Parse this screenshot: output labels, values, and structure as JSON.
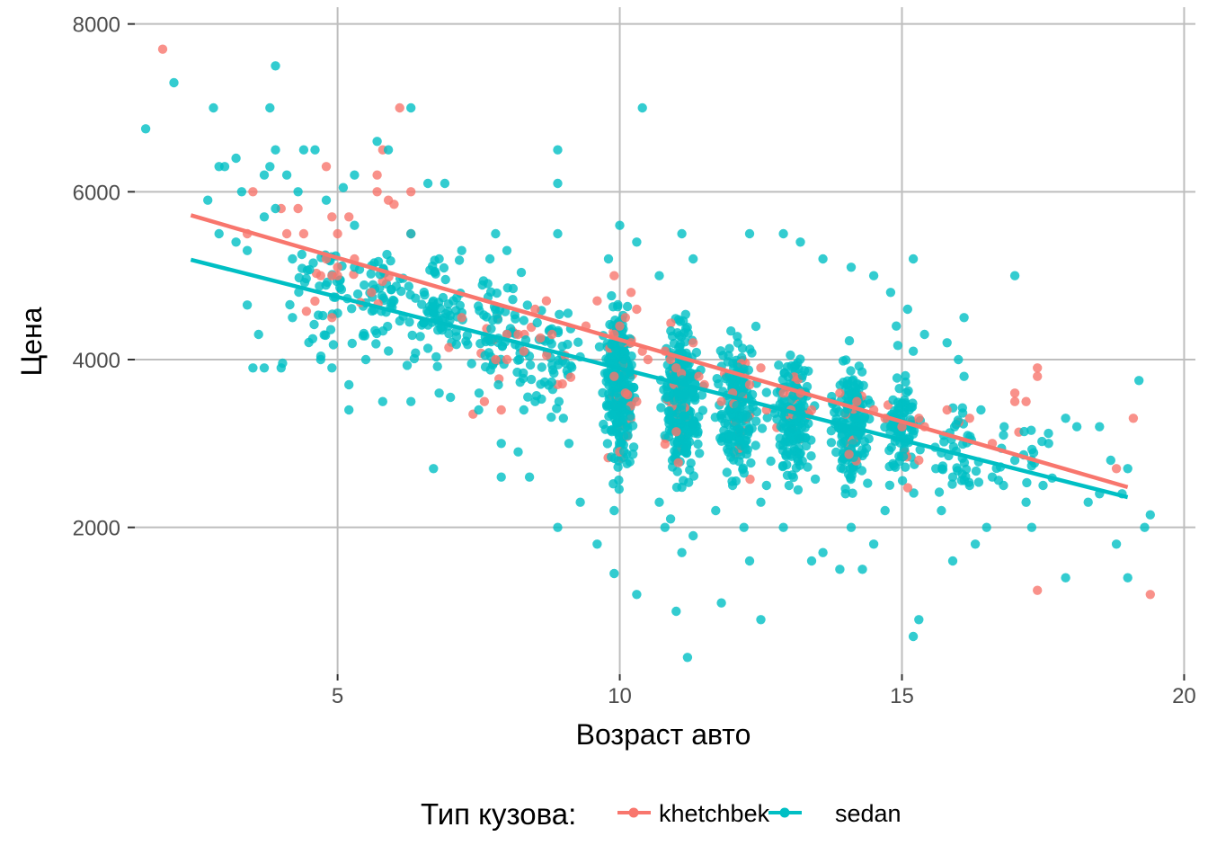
{
  "chart_data": {
    "type": "scatter",
    "xlabel": "Возраст авто",
    "ylabel": "Цена",
    "xlim": [
      1.2,
      20.2
    ],
    "ylim": [
      250,
      8200
    ],
    "x_ticks": [
      5,
      10,
      15,
      20
    ],
    "y_ticks": [
      2000,
      4000,
      6000,
      8000
    ],
    "grid": true,
    "legend": {
      "title": "Тип кузова:",
      "position": "bottom",
      "entries": [
        "khetchbek",
        "sedan"
      ]
    },
    "series": [
      {
        "name": "khetchbek",
        "color": "#F8766D",
        "trend": {
          "x": [
            2.4,
            19.0
          ],
          "y": [
            5720,
            2480
          ]
        },
        "points": [
          [
            1.9,
            7700
          ],
          [
            6.1,
            7000
          ],
          [
            5.8,
            6500
          ],
          [
            5.7,
            6200
          ],
          [
            5.9,
            5900
          ],
          [
            6.3,
            6000
          ],
          [
            4.8,
            6300
          ],
          [
            5.7,
            6000
          ],
          [
            6.0,
            5850
          ],
          [
            4.3,
            5800
          ],
          [
            4.0,
            5800
          ],
          [
            3.5,
            6000
          ],
          [
            5.2,
            5700
          ],
          [
            4.9,
            5700
          ],
          [
            6.3,
            5500
          ],
          [
            4.1,
            5500
          ],
          [
            4.4,
            5500
          ],
          [
            5.0,
            5500
          ],
          [
            3.4,
            5500
          ],
          [
            5.3,
            5200
          ],
          [
            4.8,
            5200
          ],
          [
            5.0,
            5100
          ],
          [
            4.9,
            5000
          ],
          [
            4.7,
            5000
          ],
          [
            5.0,
            5000
          ],
          [
            5.6,
            4800
          ],
          [
            4.9,
            4500
          ],
          [
            7.2,
            4500
          ],
          [
            8.5,
            4600
          ],
          [
            8.7,
            4700
          ],
          [
            9.4,
            4400
          ],
          [
            8.0,
            4300
          ],
          [
            8.8,
            4300
          ],
          [
            8.2,
            4300
          ],
          [
            8.3,
            4100
          ],
          [
            7.8,
            4000
          ],
          [
            8.0,
            4000
          ],
          [
            7.6,
            3500
          ],
          [
            7.4,
            3350
          ],
          [
            7.9,
            3400
          ],
          [
            9.6,
            4700
          ],
          [
            9.9,
            5000
          ],
          [
            10.2,
            4800
          ],
          [
            10.3,
            4600
          ],
          [
            10.1,
            4500
          ],
          [
            10.0,
            4400
          ],
          [
            9.9,
            4300
          ],
          [
            10.2,
            4200
          ],
          [
            10.4,
            4100
          ],
          [
            10.5,
            4000
          ],
          [
            9.9,
            3800
          ],
          [
            10.1,
            3600
          ],
          [
            10.3,
            3500
          ],
          [
            10.8,
            4100
          ],
          [
            10.9,
            4000
          ],
          [
            11.3,
            4200
          ],
          [
            11.0,
            3900
          ],
          [
            11.4,
            3800
          ],
          [
            11.5,
            3700
          ],
          [
            11.8,
            3500
          ],
          [
            12.0,
            3600
          ],
          [
            12.3,
            3700
          ],
          [
            12.5,
            3900
          ],
          [
            12.6,
            3400
          ],
          [
            12.9,
            3600
          ],
          [
            13.2,
            3600
          ],
          [
            13.4,
            3400
          ],
          [
            13.9,
            3600
          ],
          [
            14.2,
            3500
          ],
          [
            14.5,
            3400
          ],
          [
            14.7,
            3300
          ],
          [
            15.0,
            3200
          ],
          [
            15.3,
            3300
          ],
          [
            15.4,
            3200
          ],
          [
            15.8,
            3400
          ],
          [
            16.2,
            3300
          ],
          [
            16.6,
            3000
          ],
          [
            17.0,
            3600
          ],
          [
            17.2,
            3500
          ],
          [
            17.4,
            3800
          ],
          [
            17.4,
            3900
          ],
          [
            17.0,
            3500
          ],
          [
            17.4,
            1250
          ],
          [
            18.8,
            2700
          ],
          [
            19.1,
            3300
          ],
          [
            19.4,
            1200
          ],
          [
            15.3,
            2800
          ]
        ]
      },
      {
        "name": "sedan",
        "color": "#00BFC4",
        "trend": {
          "x": [
            2.4,
            19.0
          ],
          "y": [
            5190,
            2360
          ]
        },
        "points": [
          [
            1.6,
            6750
          ],
          [
            2.1,
            7300
          ],
          [
            2.8,
            7000
          ],
          [
            3.9,
            7500
          ],
          [
            3.8,
            7000
          ],
          [
            6.3,
            7000
          ],
          [
            10.4,
            7000
          ],
          [
            5.7,
            6600
          ],
          [
            5.9,
            6500
          ],
          [
            3.9,
            6500
          ],
          [
            4.4,
            6500
          ],
          [
            4.6,
            6500
          ],
          [
            8.9,
            6500
          ],
          [
            3.2,
            6400
          ],
          [
            2.9,
            6300
          ],
          [
            3.0,
            6300
          ],
          [
            3.8,
            6300
          ],
          [
            3.7,
            6200
          ],
          [
            4.1,
            6200
          ],
          [
            5.3,
            6200
          ],
          [
            6.6,
            6100
          ],
          [
            6.9,
            6100
          ],
          [
            8.9,
            6100
          ],
          [
            3.3,
            6000
          ],
          [
            4.3,
            6000
          ],
          [
            4.8,
            5900
          ],
          [
            5.1,
            6050
          ],
          [
            3.9,
            5800
          ],
          [
            3.7,
            5700
          ],
          [
            2.7,
            5900
          ],
          [
            5.3,
            5600
          ],
          [
            6.3,
            5500
          ],
          [
            7.8,
            5500
          ],
          [
            2.9,
            5500
          ],
          [
            3.2,
            5400
          ],
          [
            3.4,
            5300
          ],
          [
            4.2,
            5200
          ],
          [
            5.3,
            5100
          ],
          [
            6.8,
            5200
          ],
          [
            7.2,
            5300
          ],
          [
            7.7,
            5200
          ],
          [
            8.0,
            5300
          ],
          [
            8.9,
            5500
          ],
          [
            9.8,
            5200
          ],
          [
            10.0,
            5600
          ],
          [
            10.3,
            5400
          ],
          [
            10.7,
            5000
          ],
          [
            11.1,
            5500
          ],
          [
            11.3,
            5200
          ],
          [
            12.3,
            5500
          ],
          [
            12.9,
            5500
          ],
          [
            13.2,
            5400
          ],
          [
            13.6,
            5200
          ],
          [
            14.1,
            5100
          ],
          [
            14.5,
            5000
          ],
          [
            14.8,
            4800
          ],
          [
            15.2,
            5200
          ],
          [
            16.1,
            4500
          ],
          [
            17.0,
            5000
          ],
          [
            3.4,
            4650
          ],
          [
            3.6,
            4300
          ],
          [
            4.2,
            4500
          ],
          [
            3.5,
            3900
          ],
          [
            3.7,
            3900
          ],
          [
            4.0,
            3900
          ],
          [
            4.7,
            4000
          ],
          [
            4.9,
            3900
          ],
          [
            5.2,
            3700
          ],
          [
            5.5,
            4000
          ],
          [
            6.3,
            3500
          ],
          [
            5.8,
            3500
          ],
          [
            5.2,
            3400
          ],
          [
            6.8,
            3600
          ],
          [
            7.0,
            3550
          ],
          [
            7.5,
            3400
          ],
          [
            7.9,
            3000
          ],
          [
            8.2,
            2900
          ],
          [
            8.4,
            2600
          ],
          [
            7.9,
            2600
          ],
          [
            6.7,
            2700
          ],
          [
            8.3,
            3400
          ],
          [
            8.5,
            3500
          ],
          [
            9.0,
            3300
          ],
          [
            9.1,
            3000
          ],
          [
            8.9,
            2000
          ],
          [
            9.6,
            1800
          ],
          [
            9.9,
            1450
          ],
          [
            10.3,
            1200
          ],
          [
            10.8,
            2000
          ],
          [
            11.1,
            1700
          ],
          [
            11.3,
            1900
          ],
          [
            11.0,
            1000
          ],
          [
            11.2,
            450
          ],
          [
            11.8,
            1100
          ],
          [
            12.3,
            1600
          ],
          [
            12.5,
            900
          ],
          [
            12.9,
            2000
          ],
          [
            13.4,
            1600
          ],
          [
            13.6,
            1700
          ],
          [
            13.9,
            1500
          ],
          [
            14.3,
            1500
          ],
          [
            14.5,
            1800
          ],
          [
            15.2,
            700
          ],
          [
            15.3,
            900
          ],
          [
            15.9,
            1600
          ],
          [
            16.3,
            1800
          ],
          [
            16.8,
            2500
          ],
          [
            17.3,
            2000
          ],
          [
            17.5,
            2500
          ],
          [
            17.9,
            1400
          ],
          [
            18.3,
            2300
          ],
          [
            18.5,
            2400
          ],
          [
            18.8,
            1800
          ],
          [
            19.0,
            1400
          ],
          [
            19.3,
            2000
          ],
          [
            19.4,
            2150
          ],
          [
            19.2,
            3750
          ],
          [
            18.5,
            3200
          ],
          [
            18.1,
            3200
          ],
          [
            17.9,
            3300
          ],
          [
            17.6,
            3000
          ],
          [
            17.3,
            2800
          ],
          [
            17.0,
            2800
          ],
          [
            16.6,
            2600
          ],
          [
            16.2,
            2500
          ],
          [
            15.9,
            2600
          ],
          [
            15.6,
            2700
          ],
          [
            16.8,
            3100
          ],
          [
            16.4,
            3400
          ],
          [
            16.1,
            3800
          ],
          [
            16.0,
            4000
          ],
          [
            15.8,
            4200
          ],
          [
            15.4,
            4300
          ],
          [
            15.1,
            4600
          ],
          [
            15.2,
            4100
          ],
          [
            14.9,
            4400
          ],
          [
            18.9,
            2400
          ],
          [
            18.7,
            2800
          ],
          [
            19.0,
            2700
          ],
          [
            17.2,
            2300
          ],
          [
            15.7,
            2200
          ],
          [
            14.1,
            2000
          ],
          [
            12.5,
            2300
          ],
          [
            11.7,
            2200
          ],
          [
            10.9,
            2100
          ],
          [
            9.9,
            2200
          ],
          [
            9.3,
            2300
          ],
          [
            10.7,
            2300
          ],
          [
            12.6,
            2500
          ],
          [
            12.0,
            2500
          ],
          [
            12.2,
            2000
          ],
          [
            13.0,
            2500
          ],
          [
            14.0,
            2400
          ],
          [
            14.7,
            2200
          ],
          [
            16.5,
            2000
          ]
        ]
      }
    ]
  }
}
